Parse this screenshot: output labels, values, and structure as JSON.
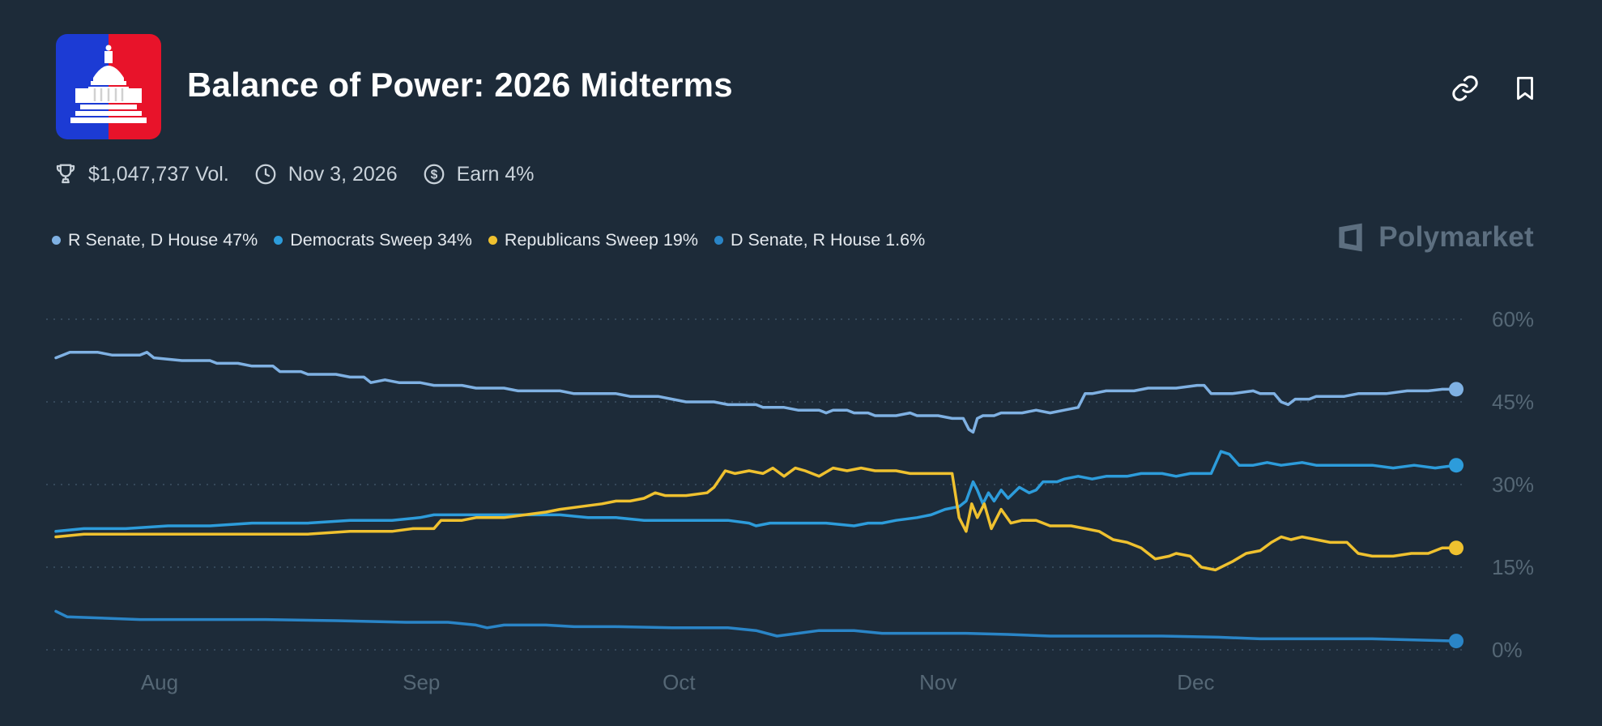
{
  "header": {
    "title": "Balance of Power: 2026 Midterms"
  },
  "stats": {
    "volume": "$1,047,737 Vol.",
    "date": "Nov 3, 2026",
    "earn": "Earn 4%"
  },
  "legend": [
    {
      "label": "R Senate, D House 47%",
      "color": "#7FB1E3"
    },
    {
      "label": "Democrats Sweep 34%",
      "color": "#2D9CDB"
    },
    {
      "label": "Republicans Sweep 19%",
      "color": "#EFC12F"
    },
    {
      "label": "D Senate, R House 1.6%",
      "color": "#2A85C7"
    }
  ],
  "brand": {
    "wordmark": "Polymarket"
  },
  "colors": {
    "background": "#1D2B39",
    "axis_label": "#556775",
    "grid": "#35485A",
    "title": "#FFFFFF",
    "stats_text": "#C9D2DA",
    "legend_text": "#E4E9EE",
    "brand": "#5D6F80"
  },
  "chart_data": {
    "type": "line",
    "title": "Balance of Power: 2026 Midterms — outcome probabilities over time",
    "xlabel": "",
    "ylabel": "",
    "ylim": [
      0,
      60
    ],
    "grid": "dotted-horizontal",
    "legend_position": "top-left",
    "y_ticks": [
      {
        "value": 0,
        "label": "0%"
      },
      {
        "value": 15,
        "label": "15%"
      },
      {
        "value": 30,
        "label": "30%"
      },
      {
        "value": 45,
        "label": "45%"
      },
      {
        "value": 60,
        "label": "60%"
      }
    ],
    "x_ticks": [
      {
        "pos": 0.074,
        "label": "Aug"
      },
      {
        "pos": 0.261,
        "label": "Sep"
      },
      {
        "pos": 0.445,
        "label": "Oct"
      },
      {
        "pos": 0.63,
        "label": "Nov"
      },
      {
        "pos": 0.814,
        "label": "Dec"
      }
    ],
    "series": [
      {
        "name": "R Senate, D House",
        "final": "47%",
        "color": "#7FB1E3",
        "points": [
          [
            0.0,
            53.0
          ],
          [
            0.005,
            53.5
          ],
          [
            0.01,
            54.0
          ],
          [
            0.03,
            54.0
          ],
          [
            0.04,
            53.5
          ],
          [
            0.06,
            53.5
          ],
          [
            0.065,
            54.0
          ],
          [
            0.07,
            53.0
          ],
          [
            0.09,
            52.5
          ],
          [
            0.11,
            52.5
          ],
          [
            0.115,
            52.0
          ],
          [
            0.13,
            52.0
          ],
          [
            0.14,
            51.5
          ],
          [
            0.155,
            51.5
          ],
          [
            0.16,
            50.5
          ],
          [
            0.175,
            50.5
          ],
          [
            0.18,
            50.0
          ],
          [
            0.2,
            50.0
          ],
          [
            0.21,
            49.5
          ],
          [
            0.22,
            49.5
          ],
          [
            0.225,
            48.5
          ],
          [
            0.235,
            49.0
          ],
          [
            0.245,
            48.5
          ],
          [
            0.26,
            48.5
          ],
          [
            0.27,
            48.0
          ],
          [
            0.29,
            48.0
          ],
          [
            0.3,
            47.5
          ],
          [
            0.32,
            47.5
          ],
          [
            0.33,
            47.0
          ],
          [
            0.36,
            47.0
          ],
          [
            0.37,
            46.5
          ],
          [
            0.4,
            46.5
          ],
          [
            0.41,
            46.0
          ],
          [
            0.43,
            46.0
          ],
          [
            0.44,
            45.5
          ],
          [
            0.45,
            45.0
          ],
          [
            0.47,
            45.0
          ],
          [
            0.48,
            44.5
          ],
          [
            0.5,
            44.5
          ],
          [
            0.505,
            44.0
          ],
          [
            0.52,
            44.0
          ],
          [
            0.53,
            43.5
          ],
          [
            0.545,
            43.5
          ],
          [
            0.55,
            43.0
          ],
          [
            0.555,
            43.5
          ],
          [
            0.565,
            43.5
          ],
          [
            0.57,
            43.0
          ],
          [
            0.58,
            43.0
          ],
          [
            0.585,
            42.5
          ],
          [
            0.6,
            42.5
          ],
          [
            0.61,
            43.0
          ],
          [
            0.615,
            42.5
          ],
          [
            0.63,
            42.5
          ],
          [
            0.64,
            42.0
          ],
          [
            0.648,
            42.0
          ],
          [
            0.652,
            40.0
          ],
          [
            0.655,
            39.5
          ],
          [
            0.658,
            42.0
          ],
          [
            0.662,
            42.5
          ],
          [
            0.67,
            42.5
          ],
          [
            0.675,
            43.0
          ],
          [
            0.69,
            43.0
          ],
          [
            0.7,
            43.5
          ],
          [
            0.71,
            43.0
          ],
          [
            0.72,
            43.5
          ],
          [
            0.73,
            44.0
          ],
          [
            0.735,
            46.5
          ],
          [
            0.74,
            46.5
          ],
          [
            0.75,
            47.0
          ],
          [
            0.77,
            47.0
          ],
          [
            0.78,
            47.5
          ],
          [
            0.8,
            47.5
          ],
          [
            0.815,
            48.0
          ],
          [
            0.82,
            48.0
          ],
          [
            0.825,
            46.5
          ],
          [
            0.84,
            46.5
          ],
          [
            0.855,
            47.0
          ],
          [
            0.86,
            46.5
          ],
          [
            0.87,
            46.5
          ],
          [
            0.875,
            45.0
          ],
          [
            0.88,
            44.5
          ],
          [
            0.885,
            45.5
          ],
          [
            0.895,
            45.5
          ],
          [
            0.9,
            46.0
          ],
          [
            0.92,
            46.0
          ],
          [
            0.93,
            46.5
          ],
          [
            0.95,
            46.5
          ],
          [
            0.965,
            47.0
          ],
          [
            0.98,
            47.0
          ],
          [
            0.99,
            47.3
          ],
          [
            1.0,
            47.3
          ]
        ]
      },
      {
        "name": "Democrats Sweep",
        "final": "34%",
        "color": "#2D9CDB",
        "points": [
          [
            0.0,
            21.5
          ],
          [
            0.02,
            22.0
          ],
          [
            0.05,
            22.0
          ],
          [
            0.08,
            22.5
          ],
          [
            0.11,
            22.5
          ],
          [
            0.14,
            23.0
          ],
          [
            0.18,
            23.0
          ],
          [
            0.21,
            23.5
          ],
          [
            0.24,
            23.5
          ],
          [
            0.26,
            24.0
          ],
          [
            0.27,
            24.5
          ],
          [
            0.3,
            24.5
          ],
          [
            0.33,
            24.5
          ],
          [
            0.36,
            24.5
          ],
          [
            0.38,
            24.0
          ],
          [
            0.4,
            24.0
          ],
          [
            0.42,
            23.5
          ],
          [
            0.45,
            23.5
          ],
          [
            0.48,
            23.5
          ],
          [
            0.495,
            23.0
          ],
          [
            0.5,
            22.5
          ],
          [
            0.51,
            23.0
          ],
          [
            0.53,
            23.0
          ],
          [
            0.55,
            23.0
          ],
          [
            0.57,
            22.5
          ],
          [
            0.58,
            23.0
          ],
          [
            0.59,
            23.0
          ],
          [
            0.6,
            23.5
          ],
          [
            0.615,
            24.0
          ],
          [
            0.625,
            24.5
          ],
          [
            0.635,
            25.5
          ],
          [
            0.645,
            26.0
          ],
          [
            0.65,
            27.0
          ],
          [
            0.655,
            30.5
          ],
          [
            0.658,
            29.0
          ],
          [
            0.662,
            26.5
          ],
          [
            0.666,
            28.5
          ],
          [
            0.67,
            27.0
          ],
          [
            0.675,
            29.0
          ],
          [
            0.68,
            27.5
          ],
          [
            0.688,
            29.5
          ],
          [
            0.695,
            28.5
          ],
          [
            0.7,
            29.0
          ],
          [
            0.705,
            30.5
          ],
          [
            0.715,
            30.5
          ],
          [
            0.72,
            31.0
          ],
          [
            0.73,
            31.5
          ],
          [
            0.74,
            31.0
          ],
          [
            0.75,
            31.5
          ],
          [
            0.765,
            31.5
          ],
          [
            0.775,
            32.0
          ],
          [
            0.79,
            32.0
          ],
          [
            0.8,
            31.5
          ],
          [
            0.81,
            32.0
          ],
          [
            0.825,
            32.0
          ],
          [
            0.832,
            36.0
          ],
          [
            0.838,
            35.5
          ],
          [
            0.845,
            33.5
          ],
          [
            0.855,
            33.5
          ],
          [
            0.865,
            34.0
          ],
          [
            0.875,
            33.5
          ],
          [
            0.89,
            34.0
          ],
          [
            0.9,
            33.5
          ],
          [
            0.92,
            33.5
          ],
          [
            0.94,
            33.5
          ],
          [
            0.955,
            33.0
          ],
          [
            0.97,
            33.5
          ],
          [
            0.985,
            33.0
          ],
          [
            1.0,
            33.5
          ]
        ]
      },
      {
        "name": "Republicans Sweep",
        "final": "19%",
        "color": "#EFC12F",
        "points": [
          [
            0.0,
            20.5
          ],
          [
            0.02,
            21.0
          ],
          [
            0.06,
            21.0
          ],
          [
            0.1,
            21.0
          ],
          [
            0.14,
            21.0
          ],
          [
            0.18,
            21.0
          ],
          [
            0.21,
            21.5
          ],
          [
            0.24,
            21.5
          ],
          [
            0.255,
            22.0
          ],
          [
            0.27,
            22.0
          ],
          [
            0.275,
            23.5
          ],
          [
            0.29,
            23.5
          ],
          [
            0.3,
            24.0
          ],
          [
            0.32,
            24.0
          ],
          [
            0.335,
            24.5
          ],
          [
            0.35,
            25.0
          ],
          [
            0.36,
            25.5
          ],
          [
            0.375,
            26.0
          ],
          [
            0.39,
            26.5
          ],
          [
            0.4,
            27.0
          ],
          [
            0.41,
            27.0
          ],
          [
            0.42,
            27.5
          ],
          [
            0.428,
            28.5
          ],
          [
            0.435,
            28.0
          ],
          [
            0.45,
            28.0
          ],
          [
            0.465,
            28.5
          ],
          [
            0.47,
            29.5
          ],
          [
            0.478,
            32.5
          ],
          [
            0.485,
            32.0
          ],
          [
            0.495,
            32.5
          ],
          [
            0.505,
            32.0
          ],
          [
            0.512,
            33.0
          ],
          [
            0.52,
            31.5
          ],
          [
            0.528,
            33.0
          ],
          [
            0.535,
            32.5
          ],
          [
            0.545,
            31.5
          ],
          [
            0.555,
            33.0
          ],
          [
            0.565,
            32.5
          ],
          [
            0.575,
            33.0
          ],
          [
            0.585,
            32.5
          ],
          [
            0.6,
            32.5
          ],
          [
            0.61,
            32.0
          ],
          [
            0.63,
            32.0
          ],
          [
            0.64,
            32.0
          ],
          [
            0.645,
            24.0
          ],
          [
            0.65,
            21.5
          ],
          [
            0.654,
            26.5
          ],
          [
            0.658,
            24.0
          ],
          [
            0.663,
            26.5
          ],
          [
            0.668,
            22.0
          ],
          [
            0.675,
            25.5
          ],
          [
            0.682,
            23.0
          ],
          [
            0.69,
            23.5
          ],
          [
            0.7,
            23.5
          ],
          [
            0.71,
            22.5
          ],
          [
            0.725,
            22.5
          ],
          [
            0.735,
            22.0
          ],
          [
            0.745,
            21.5
          ],
          [
            0.755,
            20.0
          ],
          [
            0.765,
            19.5
          ],
          [
            0.775,
            18.5
          ],
          [
            0.785,
            16.5
          ],
          [
            0.795,
            17.0
          ],
          [
            0.8,
            17.5
          ],
          [
            0.81,
            17.0
          ],
          [
            0.818,
            15.0
          ],
          [
            0.828,
            14.5
          ],
          [
            0.84,
            16.0
          ],
          [
            0.85,
            17.5
          ],
          [
            0.86,
            18.0
          ],
          [
            0.868,
            19.5
          ],
          [
            0.875,
            20.5
          ],
          [
            0.882,
            20.0
          ],
          [
            0.89,
            20.5
          ],
          [
            0.9,
            20.0
          ],
          [
            0.91,
            19.5
          ],
          [
            0.922,
            19.5
          ],
          [
            0.93,
            17.5
          ],
          [
            0.94,
            17.0
          ],
          [
            0.955,
            17.0
          ],
          [
            0.968,
            17.5
          ],
          [
            0.98,
            17.5
          ],
          [
            0.99,
            18.5
          ],
          [
            1.0,
            18.5
          ]
        ]
      },
      {
        "name": "D Senate, R House",
        "final": "1.6%",
        "color": "#2A85C7",
        "points": [
          [
            0.0,
            7.0
          ],
          [
            0.008,
            6.0
          ],
          [
            0.03,
            5.8
          ],
          [
            0.06,
            5.5
          ],
          [
            0.1,
            5.5
          ],
          [
            0.15,
            5.5
          ],
          [
            0.2,
            5.3
          ],
          [
            0.25,
            5.0
          ],
          [
            0.28,
            5.0
          ],
          [
            0.3,
            4.5
          ],
          [
            0.308,
            4.0
          ],
          [
            0.32,
            4.5
          ],
          [
            0.35,
            4.5
          ],
          [
            0.37,
            4.2
          ],
          [
            0.4,
            4.2
          ],
          [
            0.44,
            4.0
          ],
          [
            0.48,
            4.0
          ],
          [
            0.5,
            3.5
          ],
          [
            0.515,
            2.5
          ],
          [
            0.53,
            3.0
          ],
          [
            0.545,
            3.5
          ],
          [
            0.57,
            3.5
          ],
          [
            0.59,
            3.0
          ],
          [
            0.62,
            3.0
          ],
          [
            0.65,
            3.0
          ],
          [
            0.68,
            2.8
          ],
          [
            0.71,
            2.5
          ],
          [
            0.75,
            2.5
          ],
          [
            0.79,
            2.5
          ],
          [
            0.83,
            2.3
          ],
          [
            0.86,
            2.0
          ],
          [
            0.9,
            2.0
          ],
          [
            0.94,
            2.0
          ],
          [
            0.97,
            1.8
          ],
          [
            1.0,
            1.6
          ]
        ]
      }
    ]
  }
}
